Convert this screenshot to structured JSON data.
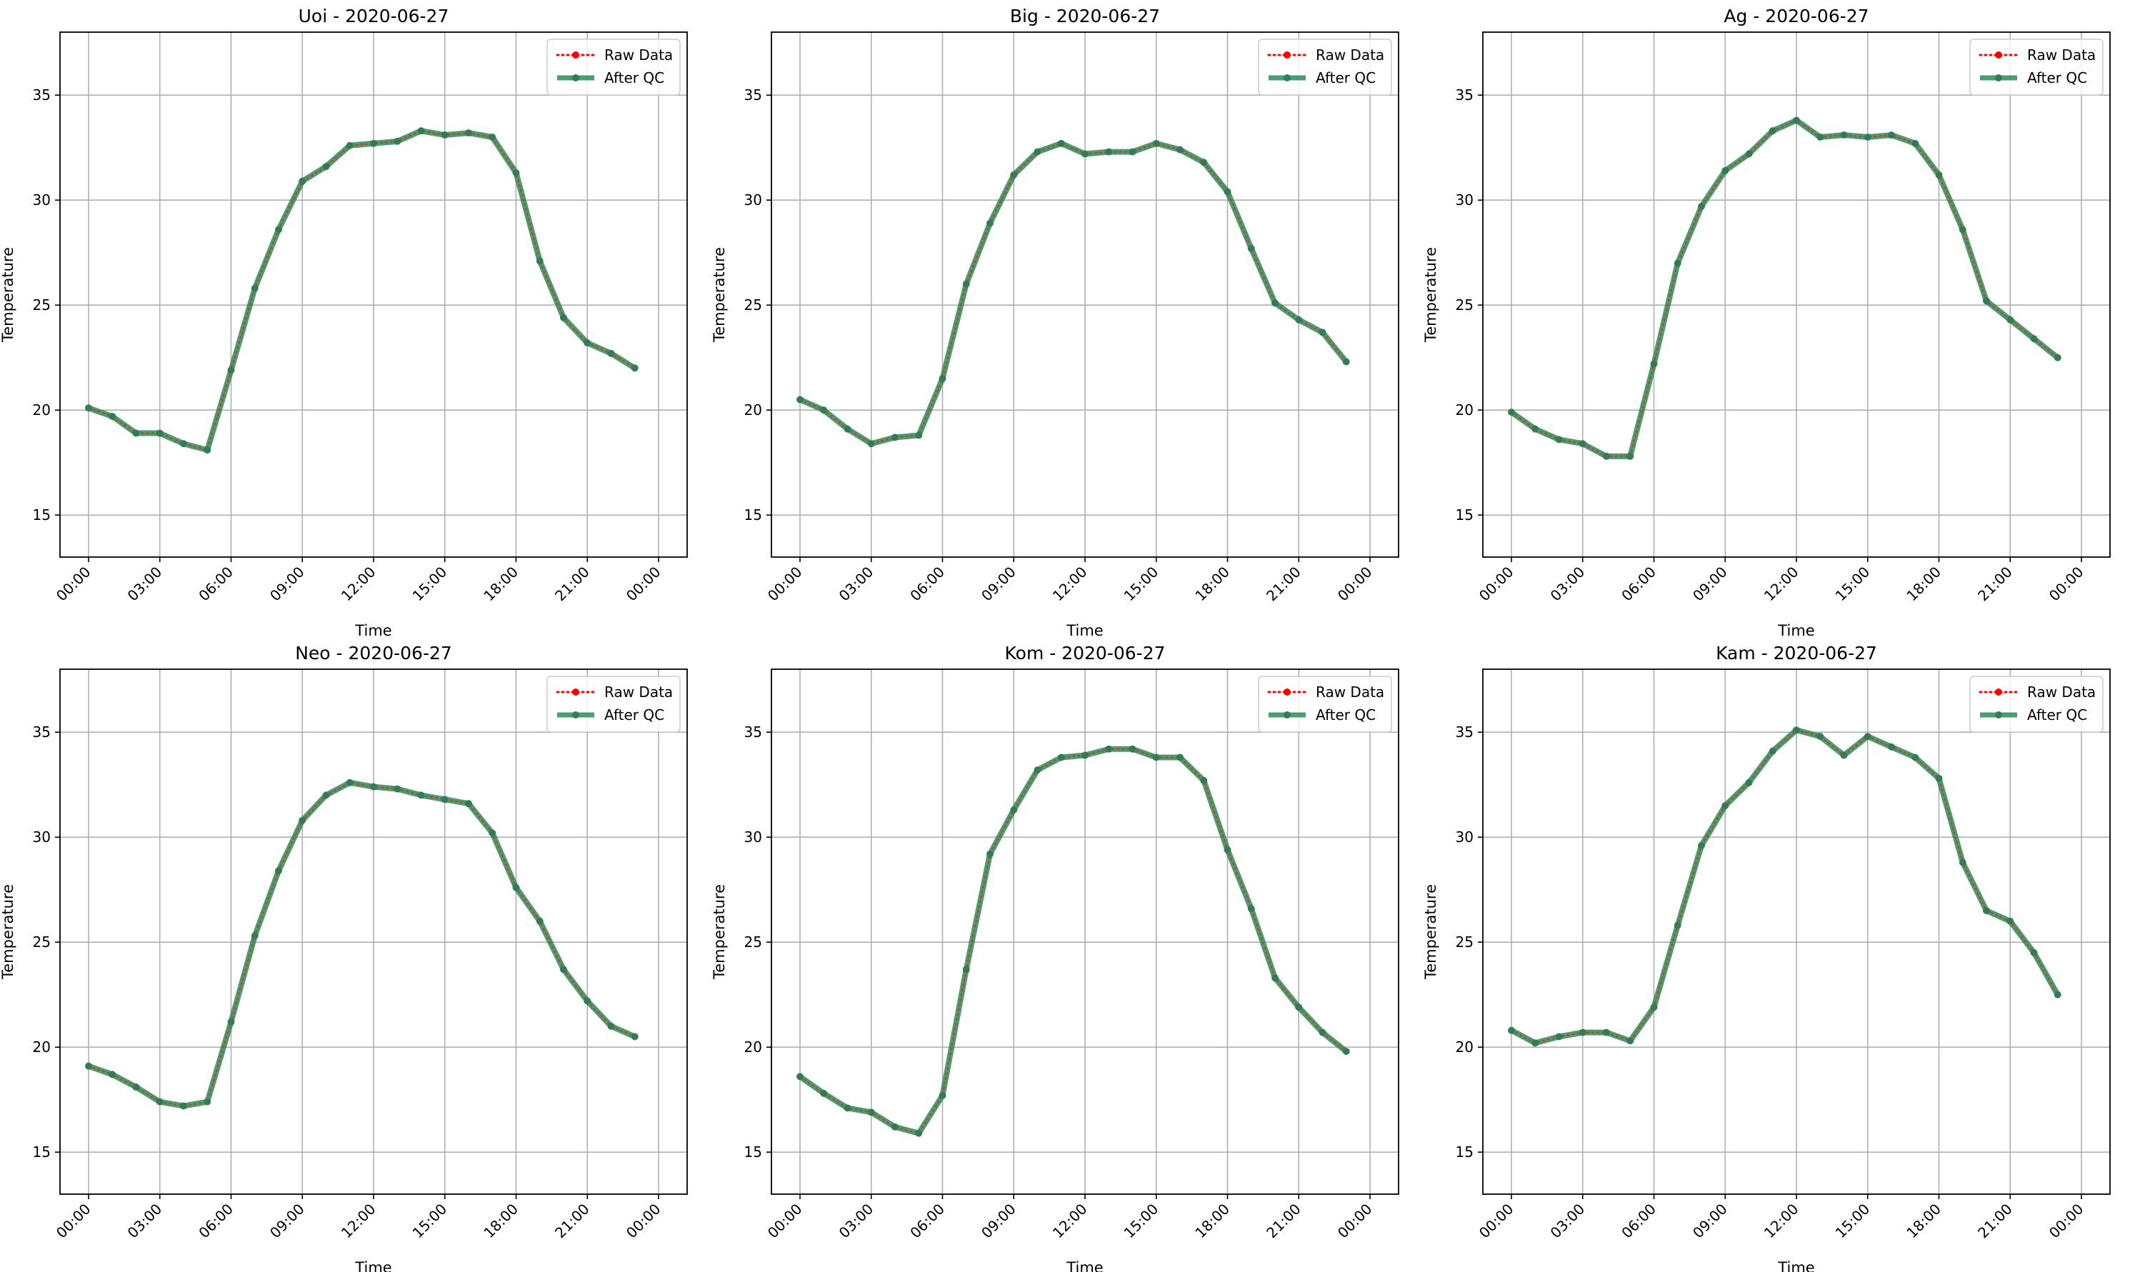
{
  "chart_data": [
    {
      "type": "line",
      "title": "Uoi - 2020-06-27",
      "xlabel": "Time",
      "ylabel": "Temperature",
      "x": [
        "00:00",
        "01:00",
        "02:00",
        "03:00",
        "04:00",
        "05:00",
        "06:00",
        "07:00",
        "08:00",
        "09:00",
        "10:00",
        "11:00",
        "12:00",
        "13:00",
        "14:00",
        "15:00",
        "16:00",
        "17:00",
        "18:00",
        "19:00",
        "20:00",
        "21:00",
        "22:00",
        "23:00"
      ],
      "xticks": [
        "00:00",
        "03:00",
        "06:00",
        "09:00",
        "12:00",
        "15:00",
        "18:00",
        "21:00",
        "00:00"
      ],
      "yticks": [
        "15",
        "20",
        "25",
        "30",
        "35"
      ],
      "ylim": [
        13,
        38
      ],
      "grid": true,
      "legend_position": "upper right",
      "series": [
        {
          "name": "Raw Data",
          "color": "#ff0000",
          "style": "dotted",
          "values": [
            20.1,
            19.7,
            18.9,
            18.9,
            18.4,
            18.1,
            21.9,
            25.8,
            28.6,
            30.9,
            31.6,
            32.6,
            32.7,
            32.8,
            33.3,
            33.1,
            33.2,
            33.0,
            31.3,
            27.1,
            24.4,
            23.2,
            22.7,
            22.0
          ]
        },
        {
          "name": "After QC",
          "color": "#2e8b57",
          "style": "solid",
          "values": [
            20.1,
            19.7,
            18.9,
            18.9,
            18.4,
            18.1,
            21.9,
            25.8,
            28.6,
            30.9,
            31.6,
            32.6,
            32.7,
            32.8,
            33.3,
            33.1,
            33.2,
            33.0,
            31.3,
            27.1,
            24.4,
            23.2,
            22.7,
            22.0
          ]
        }
      ]
    },
    {
      "type": "line",
      "title": "Big - 2020-06-27",
      "xlabel": "Time",
      "ylabel": "Temperature",
      "x": [
        "00:00",
        "01:00",
        "02:00",
        "03:00",
        "04:00",
        "05:00",
        "06:00",
        "07:00",
        "08:00",
        "09:00",
        "10:00",
        "11:00",
        "12:00",
        "13:00",
        "14:00",
        "15:00",
        "16:00",
        "17:00",
        "18:00",
        "19:00",
        "20:00",
        "21:00",
        "22:00",
        "23:00"
      ],
      "xticks": [
        "00:00",
        "03:00",
        "06:00",
        "09:00",
        "12:00",
        "15:00",
        "18:00",
        "21:00",
        "00:00"
      ],
      "yticks": [
        "15",
        "20",
        "25",
        "30",
        "35"
      ],
      "ylim": [
        13,
        38
      ],
      "grid": true,
      "legend_position": "upper right",
      "series": [
        {
          "name": "Raw Data",
          "color": "#ff0000",
          "style": "dotted",
          "values": [
            20.5,
            20.0,
            19.1,
            18.4,
            18.7,
            18.8,
            21.5,
            26.0,
            28.9,
            31.2,
            32.3,
            32.7,
            32.2,
            32.3,
            32.3,
            32.7,
            32.4,
            31.8,
            30.4,
            27.7,
            25.1,
            24.3,
            23.7,
            22.3
          ]
        },
        {
          "name": "After QC",
          "color": "#2e8b57",
          "style": "solid",
          "values": [
            20.5,
            20.0,
            19.1,
            18.4,
            18.7,
            18.8,
            21.5,
            26.0,
            28.9,
            31.2,
            32.3,
            32.7,
            32.2,
            32.3,
            32.3,
            32.7,
            32.4,
            31.8,
            30.4,
            27.7,
            25.1,
            24.3,
            23.7,
            22.3
          ]
        }
      ]
    },
    {
      "type": "line",
      "title": "Ag - 2020-06-27",
      "xlabel": "Time",
      "ylabel": "Temperature",
      "x": [
        "00:00",
        "01:00",
        "02:00",
        "03:00",
        "04:00",
        "05:00",
        "06:00",
        "07:00",
        "08:00",
        "09:00",
        "10:00",
        "11:00",
        "12:00",
        "13:00",
        "14:00",
        "15:00",
        "16:00",
        "17:00",
        "18:00",
        "19:00",
        "20:00",
        "21:00",
        "22:00",
        "23:00"
      ],
      "xticks": [
        "00:00",
        "03:00",
        "06:00",
        "09:00",
        "12:00",
        "15:00",
        "18:00",
        "21:00",
        "00:00"
      ],
      "yticks": [
        "15",
        "20",
        "25",
        "30",
        "35"
      ],
      "ylim": [
        13,
        38
      ],
      "grid": true,
      "legend_position": "upper right",
      "series": [
        {
          "name": "Raw Data",
          "color": "#ff0000",
          "style": "dotted",
          "values": [
            19.9,
            19.1,
            18.6,
            18.4,
            17.8,
            17.8,
            22.2,
            27.0,
            29.7,
            31.4,
            32.2,
            33.3,
            33.8,
            33.0,
            33.1,
            33.0,
            33.1,
            32.7,
            31.2,
            28.6,
            25.2,
            24.3,
            23.4,
            22.5
          ]
        },
        {
          "name": "After QC",
          "color": "#2e8b57",
          "style": "solid",
          "values": [
            19.9,
            19.1,
            18.6,
            18.4,
            17.8,
            17.8,
            22.2,
            27.0,
            29.7,
            31.4,
            32.2,
            33.3,
            33.8,
            33.0,
            33.1,
            33.0,
            33.1,
            32.7,
            31.2,
            28.6,
            25.2,
            24.3,
            23.4,
            22.5
          ]
        }
      ]
    },
    {
      "type": "line",
      "title": "Neo - 2020-06-27",
      "xlabel": "Time",
      "ylabel": "Temperature",
      "x": [
        "00:00",
        "01:00",
        "02:00",
        "03:00",
        "04:00",
        "05:00",
        "06:00",
        "07:00",
        "08:00",
        "09:00",
        "10:00",
        "11:00",
        "12:00",
        "13:00",
        "14:00",
        "15:00",
        "16:00",
        "17:00",
        "18:00",
        "19:00",
        "20:00",
        "21:00",
        "22:00",
        "23:00"
      ],
      "xticks": [
        "00:00",
        "03:00",
        "06:00",
        "09:00",
        "12:00",
        "15:00",
        "18:00",
        "21:00",
        "00:00"
      ],
      "yticks": [
        "15",
        "20",
        "25",
        "30",
        "35"
      ],
      "ylim": [
        13,
        38
      ],
      "grid": true,
      "legend_position": "upper right",
      "series": [
        {
          "name": "Raw Data",
          "color": "#ff0000",
          "style": "dotted",
          "values": [
            19.1,
            18.7,
            18.1,
            17.4,
            17.2,
            17.4,
            21.2,
            25.3,
            28.4,
            30.8,
            32.0,
            32.6,
            32.4,
            32.3,
            32.0,
            31.8,
            31.6,
            30.2,
            27.6,
            26.0,
            23.7,
            22.2,
            21.0,
            20.5
          ]
        },
        {
          "name": "After QC",
          "color": "#2e8b57",
          "style": "solid",
          "values": [
            19.1,
            18.7,
            18.1,
            17.4,
            17.2,
            17.4,
            21.2,
            25.3,
            28.4,
            30.8,
            32.0,
            32.6,
            32.4,
            32.3,
            32.0,
            31.8,
            31.6,
            30.2,
            27.6,
            26.0,
            23.7,
            22.2,
            21.0,
            20.5
          ]
        }
      ]
    },
    {
      "type": "line",
      "title": "Kom - 2020-06-27",
      "xlabel": "Time",
      "ylabel": "Temperature",
      "x": [
        "00:00",
        "01:00",
        "02:00",
        "03:00",
        "04:00",
        "05:00",
        "06:00",
        "07:00",
        "08:00",
        "09:00",
        "10:00",
        "11:00",
        "12:00",
        "13:00",
        "14:00",
        "15:00",
        "16:00",
        "17:00",
        "18:00",
        "19:00",
        "20:00",
        "21:00",
        "22:00",
        "23:00"
      ],
      "xticks": [
        "00:00",
        "03:00",
        "06:00",
        "09:00",
        "12:00",
        "15:00",
        "18:00",
        "21:00",
        "00:00"
      ],
      "yticks": [
        "15",
        "20",
        "25",
        "30",
        "35"
      ],
      "ylim": [
        13,
        38
      ],
      "grid": true,
      "legend_position": "upper right",
      "series": [
        {
          "name": "Raw Data",
          "color": "#ff0000",
          "style": "dotted",
          "values": [
            18.6,
            17.8,
            17.1,
            16.9,
            16.2,
            15.9,
            17.7,
            23.7,
            29.2,
            31.3,
            33.2,
            33.8,
            33.9,
            34.2,
            34.2,
            33.8,
            33.8,
            32.7,
            29.4,
            26.6,
            23.3,
            21.9,
            20.7,
            19.8
          ]
        },
        {
          "name": "After QC",
          "color": "#2e8b57",
          "style": "solid",
          "values": [
            18.6,
            17.8,
            17.1,
            16.9,
            16.2,
            15.9,
            17.7,
            23.7,
            29.2,
            31.3,
            33.2,
            33.8,
            33.9,
            34.2,
            34.2,
            33.8,
            33.8,
            32.7,
            29.4,
            26.6,
            23.3,
            21.9,
            20.7,
            19.8
          ]
        }
      ]
    },
    {
      "type": "line",
      "title": "Kam - 2020-06-27",
      "xlabel": "Time",
      "ylabel": "Temperature",
      "x": [
        "00:00",
        "01:00",
        "02:00",
        "03:00",
        "04:00",
        "05:00",
        "06:00",
        "07:00",
        "08:00",
        "09:00",
        "10:00",
        "11:00",
        "12:00",
        "13:00",
        "14:00",
        "15:00",
        "16:00",
        "17:00",
        "18:00",
        "19:00",
        "20:00",
        "21:00",
        "22:00",
        "23:00"
      ],
      "xticks": [
        "00:00",
        "03:00",
        "06:00",
        "09:00",
        "12:00",
        "15:00",
        "18:00",
        "21:00",
        "00:00"
      ],
      "yticks": [
        "15",
        "20",
        "25",
        "30",
        "35"
      ],
      "ylim": [
        13,
        38
      ],
      "grid": true,
      "legend_position": "upper right",
      "series": [
        {
          "name": "Raw Data",
          "color": "#ff0000",
          "style": "dotted",
          "values": [
            20.8,
            20.2,
            20.5,
            20.7,
            20.7,
            20.3,
            21.9,
            25.8,
            29.6,
            31.5,
            32.6,
            34.1,
            35.1,
            34.8,
            33.9,
            34.8,
            34.3,
            33.8,
            32.8,
            28.8,
            26.5,
            26.0,
            24.5,
            22.5
          ]
        },
        {
          "name": "After QC",
          "color": "#2e8b57",
          "style": "solid",
          "values": [
            20.8,
            20.2,
            20.5,
            20.7,
            20.7,
            20.3,
            21.9,
            25.8,
            29.6,
            31.5,
            32.6,
            34.1,
            35.1,
            34.8,
            33.9,
            34.8,
            34.3,
            33.8,
            32.8,
            28.8,
            26.5,
            26.0,
            24.5,
            22.5
          ]
        }
      ]
    }
  ]
}
